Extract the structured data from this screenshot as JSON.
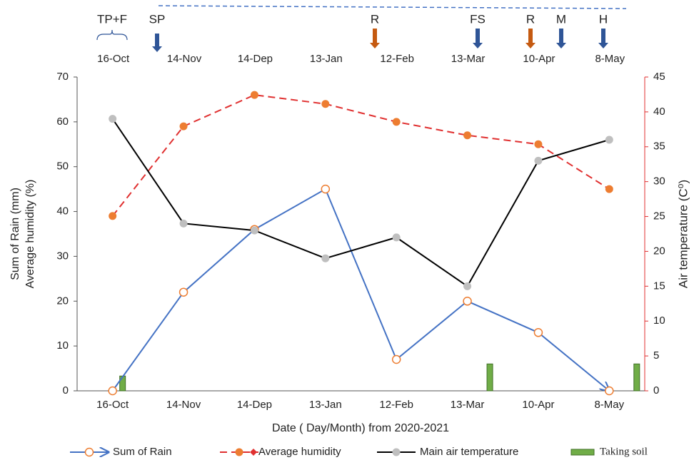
{
  "chart_data": {
    "type": "line",
    "x_label": "Date ( Day/Month)  from 2020-2021",
    "y_label": [
      "Sum of Rain (mm)",
      "Average humidity (%)"
    ],
    "y2_label": "Air temperature (C⁰)",
    "categories": [
      "16-Oct",
      "14-Nov",
      "14-Dep",
      "13-Jan",
      "12-Feb",
      "13-Mar",
      "10-Apr",
      "8-May"
    ],
    "ylim": [
      0,
      70
    ],
    "yticks": [
      0,
      10,
      20,
      30,
      40,
      50,
      60,
      70
    ],
    "y2lim": [
      0,
      45
    ],
    "y2ticks": [
      0,
      5,
      10,
      15,
      20,
      25,
      30,
      35,
      40,
      45
    ],
    "y2_color": "#e03030",
    "grid": false,
    "legend": "bottom",
    "series": [
      {
        "name": "Sum of Rain",
        "kind": "line",
        "color": "#4472c4",
        "marker_color": "#ed7d31",
        "marker": "hollow-circle",
        "values": [
          0,
          22,
          36,
          45,
          7,
          20,
          13,
          0
        ]
      },
      {
        "name": "Average humidity",
        "kind": "dashed-line",
        "color": "#e03030",
        "marker_color": "#ed7d31",
        "marker": "circle",
        "values": [
          39,
          59,
          66,
          64,
          60,
          57,
          55,
          45
        ]
      },
      {
        "name": "Main air temperature",
        "kind": "line",
        "axis": "y2",
        "color": "#000000",
        "marker_color": "#bfbfbf",
        "marker": "circle",
        "values": [
          39,
          24,
          23,
          19,
          22,
          15,
          33,
          36
        ]
      },
      {
        "name": "Taking soil",
        "kind": "bar",
        "color": "#70ad47",
        "values": [
          3.3,
          null,
          null,
          null,
          null,
          6,
          null,
          6
        ]
      }
    ],
    "annotations": [
      {
        "text": "TP+F",
        "marker": "brace",
        "color": "#2f5597"
      },
      {
        "text": "SP",
        "marker": "arrow",
        "color": "#2f5597"
      },
      {
        "text": "R",
        "marker": "arrow",
        "color": "#c55a11"
      },
      {
        "text": "FS",
        "marker": "arrow",
        "color": "#2f5597"
      },
      {
        "text": "R",
        "marker": "arrow",
        "color": "#c55a11"
      },
      {
        "text": "M",
        "marker": "arrow",
        "color": "#2f5597"
      },
      {
        "text": "H",
        "marker": "arrow",
        "color": "#2f5597"
      }
    ]
  }
}
